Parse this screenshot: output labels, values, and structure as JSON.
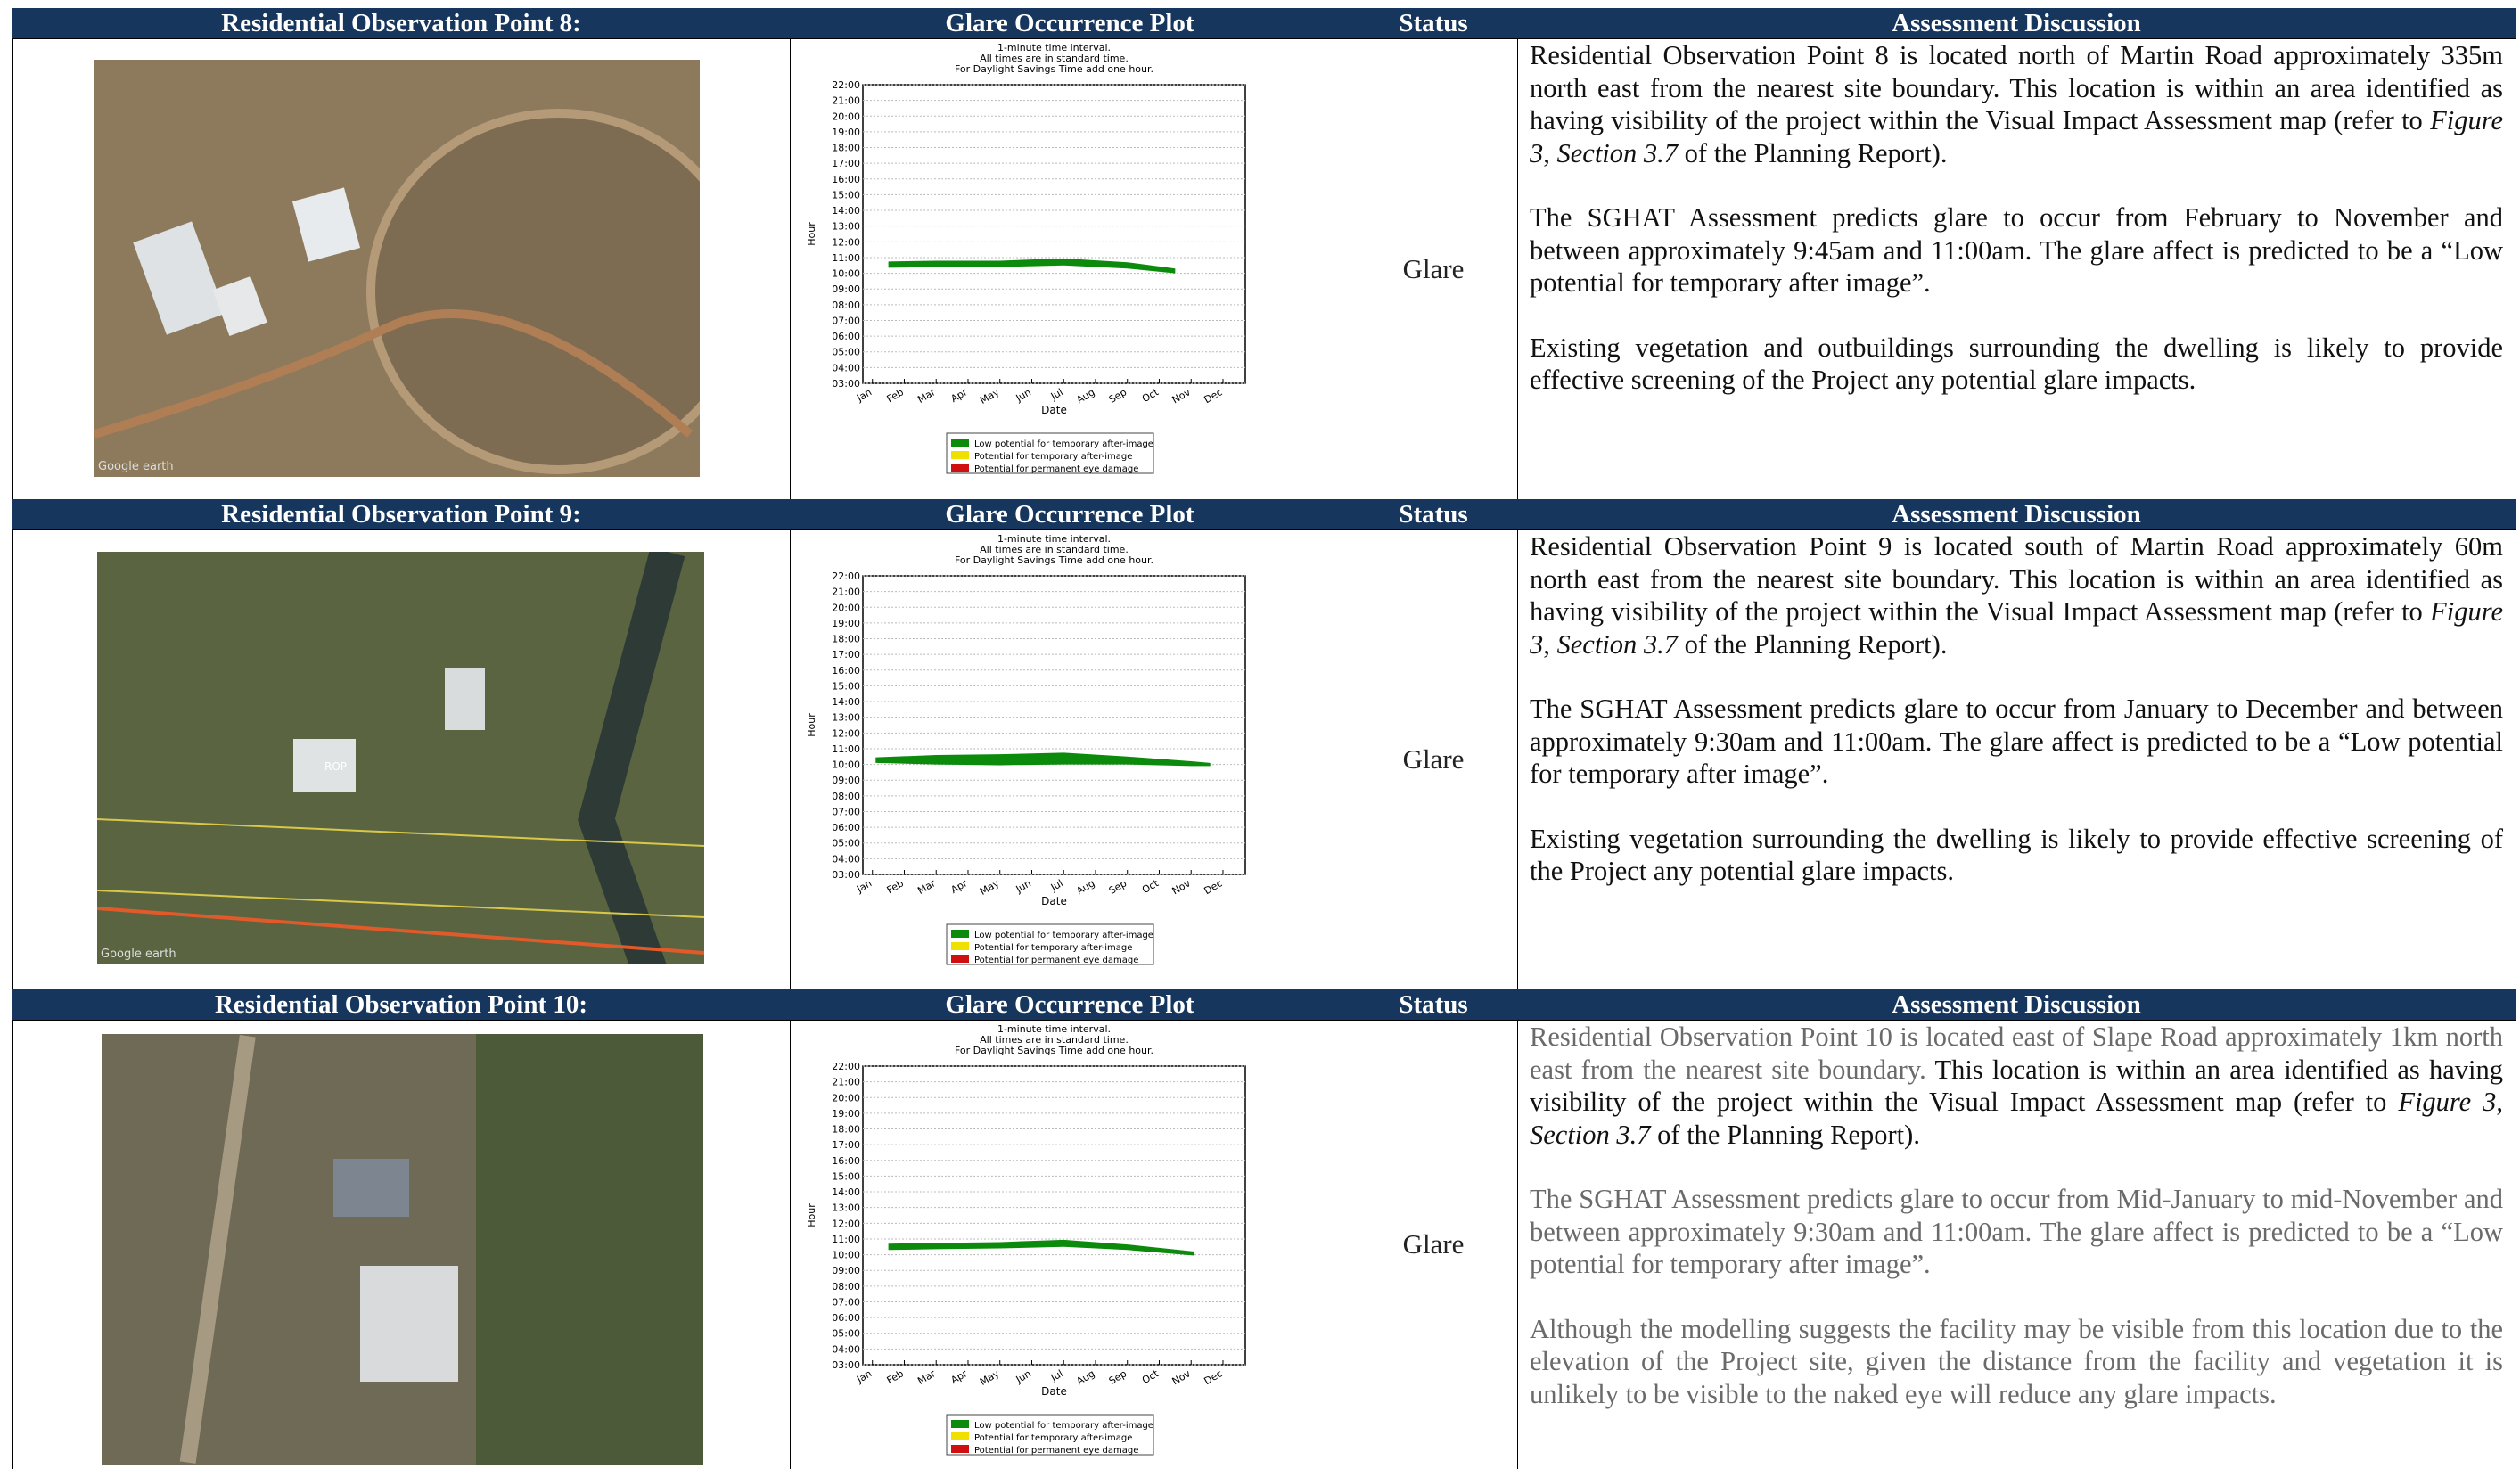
{
  "rows": [
    {
      "point_header": "Residential Observation Point 8:",
      "plot_header": "Glare Occurrence Plot",
      "status_header": "Status",
      "discussion_header": "Assessment Discussion",
      "image_watermark": "Google earth",
      "status": "Glare",
      "discussion": [
        [
          {
            "text": "Residential Observation Point 8 is located north of Martin Road approximately 335m north east from the nearest site boundary. This location is within an area identified as having visibility of the project within the Visual Impact Assessment map (refer to "
          },
          {
            "text": "Figure 3",
            "italic": true
          },
          {
            "text": ", "
          },
          {
            "text": "Section 3.7",
            "italic": true
          },
          {
            "text": " of the Planning Report)."
          }
        ],
        [
          {
            "text": "The SGHAT Assessment predicts glare to occur from February to November and between approximately 9:45am and 11:00am. The glare affect is predicted to be a “Low potential for temporary after image”."
          }
        ],
        [
          {
            "text": "Existing vegetation and outbuildings surrounding the dwelling is likely to provide effective screening of the Project any potential glare impacts."
          }
        ]
      ],
      "glare": {
        "x": [
          1.5,
          3,
          5,
          7,
          9,
          10.5
        ],
        "lower": [
          10.35,
          10.4,
          10.4,
          10.5,
          10.3,
          10.0
        ],
        "upper": [
          10.75,
          10.8,
          10.8,
          10.95,
          10.7,
          10.3
        ]
      }
    },
    {
      "point_header": "Residential Observation Point 9:",
      "plot_header": "Glare Occurrence Plot",
      "status_header": "Status",
      "discussion_header": "Assessment Discussion",
      "image_watermark": "Google earth",
      "image_label": "ROP",
      "status": "Glare",
      "discussion": [
        [
          {
            "text": "Residential Observation Point 9 is located south of Martin Road approximately 60m north east from the nearest site boundary. This location is within an area identified as having visibility of the project within the Visual Impact Assessment map (refer to "
          },
          {
            "text": "Figure 3",
            "italic": true
          },
          {
            "text": ", "
          },
          {
            "text": "Section 3.7",
            "italic": true
          },
          {
            "text": " of the Planning Report)."
          }
        ],
        [
          {
            "text": "The SGHAT Assessment predicts glare to occur from January to December and between approximately 9:30am and 11:00am. The glare affect is predicted to be a “Low potential for temporary after image”."
          }
        ],
        [
          {
            "text": "Existing vegetation surrounding the dwelling is likely to provide effective screening of the Project any potential glare impacts."
          }
        ]
      ],
      "glare": {
        "x": [
          1.1,
          3,
          5,
          7,
          9,
          11,
          11.6
        ],
        "lower": [
          10.1,
          10.0,
          9.95,
          10.0,
          10.0,
          9.9,
          9.9
        ],
        "upper": [
          10.45,
          10.6,
          10.65,
          10.75,
          10.5,
          10.2,
          10.1
        ]
      }
    },
    {
      "point_header": "Residential Observation Point 10:",
      "plot_header": "Glare Occurrence Plot",
      "status_header": "Status",
      "discussion_header": "Assessment Discussion",
      "status": "Glare",
      "discussion": [
        [
          {
            "text": "Residential Observation Point 10 is located east of Slape Road approximately 1km north east from the nearest site boundary. ",
            "gray": true
          },
          {
            "text": "This location is within an area identified as having visibility of the project within the Visual Impact Assessment map (refer to "
          },
          {
            "text": "Figure 3",
            "italic": true
          },
          {
            "text": ", "
          },
          {
            "text": "Section 3.7",
            "italic": true
          },
          {
            "text": " of the Planning Report)."
          }
        ],
        [
          {
            "text": "The SGHAT Assessment predicts glare to occur from Mid-January to mid-November and between approximately 9:30am and 11:00am. The glare affect is predicted to be a “Low potential for temporary after image”.",
            "gray": true
          }
        ],
        [
          {
            "text": "Although the modelling suggests the facility may be visible from this location due to the elevation of the Project site, given the distance from the facility and vegetation it is unlikely to be visible to the naked eye will reduce any glare impacts.",
            "gray": true
          }
        ]
      ],
      "glare": {
        "x": [
          1.5,
          3,
          5,
          7,
          9,
          11.1
        ],
        "lower": [
          10.3,
          10.35,
          10.4,
          10.5,
          10.3,
          9.95
        ],
        "upper": [
          10.7,
          10.75,
          10.8,
          10.95,
          10.65,
          10.2
        ]
      }
    }
  ],
  "plot": {
    "notes": [
      "1-minute time interval.",
      "All times are in standard time.",
      "For Daylight Savings Time add one hour."
    ],
    "xlabel": "Date",
    "ylabel": "Hour",
    "xlim": [
      0.7,
      12.7
    ],
    "ylim": [
      3,
      22
    ],
    "xticks": [
      {
        "value": 1,
        "label": "Jan"
      },
      {
        "value": 2,
        "label": "Feb"
      },
      {
        "value": 3,
        "label": "Mar"
      },
      {
        "value": 4,
        "label": "Apr"
      },
      {
        "value": 5,
        "label": "May"
      },
      {
        "value": 6,
        "label": "Jun"
      },
      {
        "value": 7,
        "label": "Jul"
      },
      {
        "value": 8,
        "label": "Aug"
      },
      {
        "value": 9,
        "label": "Sep"
      },
      {
        "value": 10,
        "label": "Oct"
      },
      {
        "value": 11,
        "label": "Nov"
      },
      {
        "value": 12,
        "label": "Dec"
      }
    ],
    "yticks": [
      {
        "value": 3,
        "label": "03:00"
      },
      {
        "value": 4,
        "label": "04:00"
      },
      {
        "value": 5,
        "label": "05:00"
      },
      {
        "value": 6,
        "label": "06:00"
      },
      {
        "value": 7,
        "label": "07:00"
      },
      {
        "value": 8,
        "label": "08:00"
      },
      {
        "value": 9,
        "label": "09:00"
      },
      {
        "value": 10,
        "label": "10:00"
      },
      {
        "value": 11,
        "label": "11:00"
      },
      {
        "value": 12,
        "label": "12:00"
      },
      {
        "value": 13,
        "label": "13:00"
      },
      {
        "value": 14,
        "label": "14:00"
      },
      {
        "value": 15,
        "label": "15:00"
      },
      {
        "value": 16,
        "label": "16:00"
      },
      {
        "value": 17,
        "label": "17:00"
      },
      {
        "value": 18,
        "label": "18:00"
      },
      {
        "value": 19,
        "label": "19:00"
      },
      {
        "value": 20,
        "label": "20:00"
      },
      {
        "value": 21,
        "label": "21:00"
      },
      {
        "value": 22,
        "label": "22:00"
      }
    ],
    "band_color": "#0b8a0b",
    "legend": [
      {
        "name": "Low potential for temporary after-image",
        "color": "#0b8a0b"
      },
      {
        "name": "Potential for temporary after-image",
        "color": "#f0e000"
      },
      {
        "name": "Potential for permanent eye damage",
        "color": "#d01010"
      }
    ]
  }
}
